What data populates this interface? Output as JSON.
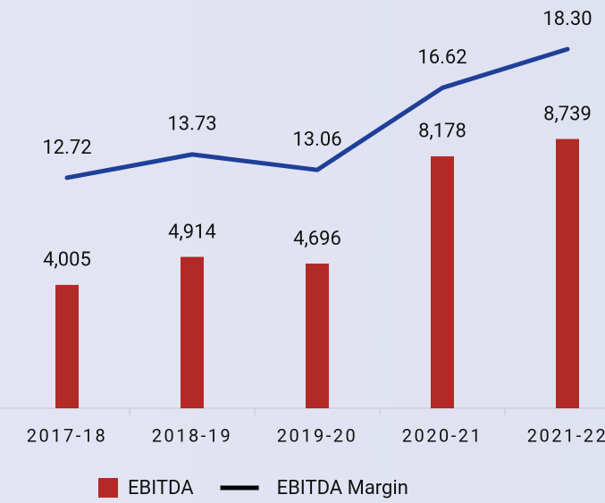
{
  "chart_data": {
    "type": "bar_line",
    "categories": [
      "2017-18",
      "2018-19",
      "2019-20",
      "2020-21",
      "2021-22"
    ],
    "series": [
      {
        "name": "EBITDA",
        "type": "bar",
        "color": "#b22a26",
        "values": [
          4005,
          4914,
          4696,
          8178,
          8739
        ],
        "value_labels": [
          "4,005",
          "4,914",
          "4,696",
          "8,178",
          "8,739"
        ]
      },
      {
        "name": "EBITDA Margin",
        "type": "line",
        "axis": "y2",
        "color": "#1f3f99",
        "values": [
          12.72,
          13.73,
          13.06,
          16.62,
          18.3
        ],
        "value_labels": [
          "12.72",
          "13.73",
          "13.06",
          "16.62",
          "18.30"
        ]
      }
    ],
    "ylim": [
      0,
      13250
    ],
    "y2lim": [
      2.72,
      20.43
    ],
    "legend": "bottom"
  }
}
